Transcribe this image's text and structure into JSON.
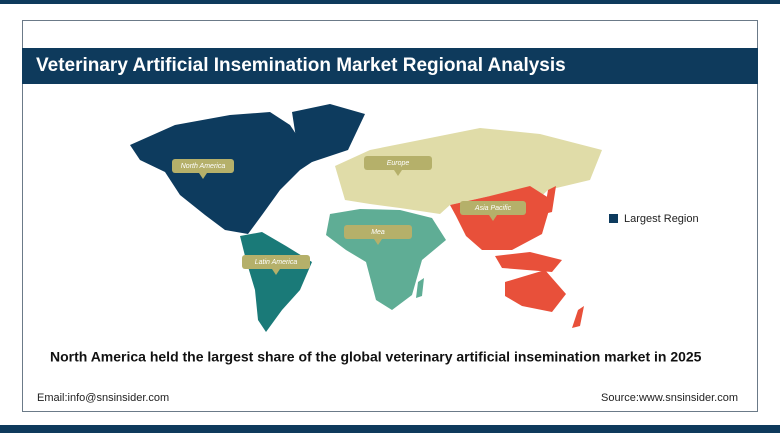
{
  "header": {
    "title": "Veterinary Artificial Insemination Market Regional Analysis"
  },
  "map": {
    "regions": [
      {
        "label": "North America"
      },
      {
        "label": "Europe"
      },
      {
        "label": "Asia Pacific"
      },
      {
        "label": "Mea"
      },
      {
        "label": "Latin America"
      }
    ],
    "legend": {
      "label": "Largest Region"
    }
  },
  "caption": "North America held the largest share of the global veterinary artificial insemination market in 2025",
  "footer": {
    "email": "Email:info@snsinsider.com",
    "source": "Source:www.snsinsider.com"
  }
}
